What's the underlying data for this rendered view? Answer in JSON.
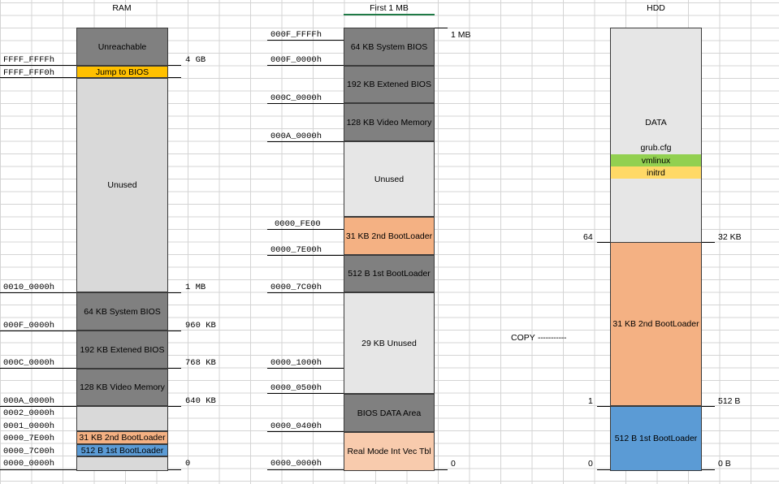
{
  "headers": {
    "ram": "RAM",
    "first": "First 1 MB",
    "hdd": "HDD"
  },
  "ram": {
    "blocks": {
      "unreachable": "Unreachable",
      "jump": "Jump to BIOS",
      "unused": "Unused",
      "sysbios": "64 KB System BIOS",
      "extbios": "192 KB Extened BIOS",
      "video": "128 KB Video Memory",
      "bl2": "31 KB 2nd BootLoader",
      "bl1": "512 B 1st BootLoader"
    },
    "addr": {
      "a1": "FFFF_FFFFh",
      "a2": "FFFF_FFF0h",
      "a3": "0010_0000h",
      "a4": "000F_0000h",
      "a5": "000C_0000h",
      "a6": "000A_0000h",
      "a7": "0002_0000h",
      "a8": "0001_0000h",
      "a9": "0000_7E00h",
      "a10": "0000_7C00h",
      "a11": "0000_0000h"
    },
    "size": {
      "s1": "4 GB",
      "s2": "1 MB",
      "s3": "960 KB",
      "s4": "768 KB",
      "s5": "640 KB",
      "s6": "0"
    }
  },
  "first": {
    "blocks": {
      "sysbios": "64 KB System BIOS",
      "extbios": "192 KB Extened BIOS",
      "video": "128 KB Video Memory",
      "unused": "Unused",
      "bl2": "31 KB 2nd BootLoader",
      "bl1": "512 B 1st BootLoader",
      "unused29": "29 KB Unused",
      "bda": "BIOS DATA Area",
      "ivt": "Real Mode Int Vec Tbl"
    },
    "addr": {
      "a1": "000F_FFFFh",
      "a2": "000F_0000h",
      "a3": "000C_0000h",
      "a4": "000A_0000h",
      "a5": "0000_FE00",
      "a6": "0000_7E00h",
      "a7": "0000_7C00h",
      "a8": "0000_1000h",
      "a9": "0000_0500h",
      "a10": "0000_0400h",
      "a11": "0000_0000h"
    },
    "size": {
      "s1": "1 MB",
      "s2": "0"
    }
  },
  "hdd": {
    "blocks": {
      "data": "DATA",
      "grub": "grub.cfg",
      "vmlinux": "vmlinux",
      "initrd": "initrd",
      "bl2": "31 KB 2nd BootLoader",
      "bl1": "512 B 1st BootLoader"
    },
    "left": {
      "l1": "64",
      "l2": "1",
      "l3": "0"
    },
    "right": {
      "r1": "32 KB",
      "r2": "512 B",
      "r3": "0 B"
    },
    "copy": "COPY",
    "copy_dash": "-----------"
  },
  "colors": {
    "dark_gray": "#808080",
    "light_gray": "#e6e6e6",
    "orange": "#f4b183",
    "peach": "#f8cbad",
    "blue": "#5b9bd5",
    "gold": "#ffc000",
    "green": "#92d050",
    "yellow": "#ffd966"
  }
}
